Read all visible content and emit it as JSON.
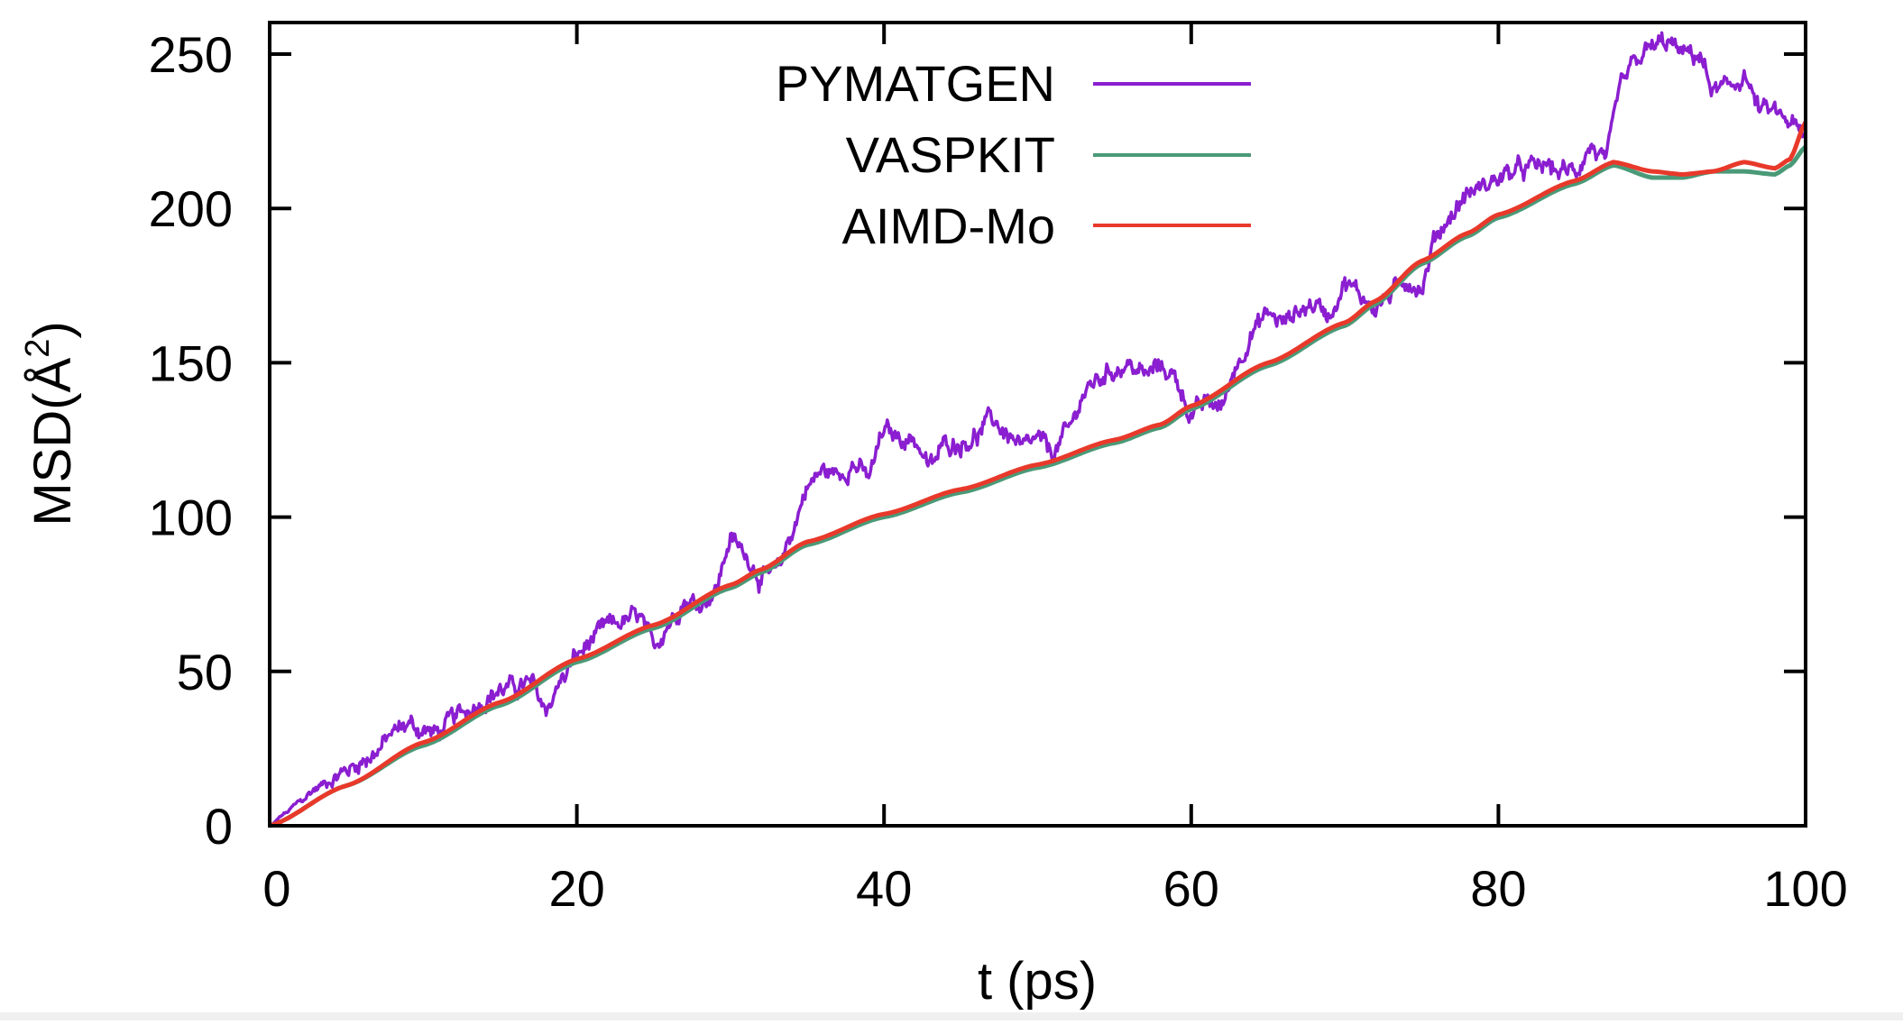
{
  "chart_data": {
    "type": "line",
    "title": "",
    "xlabel": "t (ps)",
    "ylabel": "MSD(Å²)",
    "ylabel_parts": {
      "main": "MSD(Å",
      "sup": "2",
      "close": ")"
    },
    "xlim": [
      0,
      100
    ],
    "ylim": [
      0,
      260
    ],
    "xticks": [
      0,
      20,
      40,
      60,
      80,
      100
    ],
    "yticks": [
      0,
      50,
      100,
      150,
      200,
      250
    ],
    "xtick_labels": [
      "0",
      "20",
      "40",
      "60",
      "80",
      "100"
    ],
    "ytick_labels": [
      "0",
      "50",
      "100",
      "150",
      "200",
      "250"
    ],
    "grid": false,
    "legend_position": "top-center-inside",
    "series": [
      {
        "name": "PYMATGEN",
        "color": "#8a1ed0",
        "noisy": true,
        "x": [
          0,
          1,
          2,
          3,
          4,
          5,
          6,
          7,
          8,
          9,
          10,
          11,
          12,
          13,
          14,
          15,
          16,
          17,
          18,
          19,
          20,
          21,
          22,
          23,
          24,
          25,
          26,
          27,
          28,
          29,
          30,
          31,
          32,
          33,
          34,
          35,
          36,
          37,
          38,
          39,
          40,
          41,
          42,
          43,
          44,
          45,
          46,
          47,
          48,
          49,
          50,
          51,
          52,
          53,
          54,
          55,
          56,
          57,
          58,
          59,
          60,
          61,
          62,
          63,
          64,
          65,
          66,
          67,
          68,
          69,
          70,
          71,
          72,
          73,
          74,
          75,
          76,
          77,
          78,
          79,
          80,
          81,
          82,
          83,
          84,
          85,
          86,
          87,
          88,
          89,
          90,
          91,
          92,
          93,
          94,
          95,
          96,
          97,
          98,
          99,
          100
        ],
        "values": [
          0,
          4,
          8,
          12,
          15,
          18,
          21,
          24,
          30,
          33,
          31,
          30,
          35,
          38,
          41,
          44,
          45,
          46,
          38,
          47,
          55,
          60,
          65,
          66,
          68,
          58,
          66,
          73,
          72,
          76,
          93,
          88,
          80,
          82,
          95,
          110,
          115,
          114,
          117,
          113,
          128,
          126,
          125,
          116,
          124,
          124,
          126,
          132,
          127,
          122,
          125,
          121,
          128,
          140,
          145,
          148,
          149,
          146,
          149,
          145,
          133,
          137,
          136,
          150,
          160,
          166,
          163,
          167,
          169,
          166,
          176,
          172,
          168,
          172,
          177,
          174,
          192,
          198,
          205,
          207,
          210,
          212,
          213,
          214,
          212,
          212,
          220,
          215,
          240,
          248,
          252,
          254,
          250,
          250,
          238,
          239,
          243,
          232,
          231,
          228,
          222
        ]
      },
      {
        "name": "VASPKIT",
        "color": "#4a9a78",
        "noisy": false,
        "x": [
          0,
          5,
          10,
          15,
          20,
          25,
          30,
          32,
          35,
          40,
          45,
          50,
          55,
          58,
          60,
          65,
          70,
          72,
          75,
          78,
          80,
          85,
          87.5,
          90,
          92,
          94,
          96,
          98,
          99,
          100
        ],
        "values": [
          0,
          13,
          26,
          39,
          53,
          64,
          77,
          82,
          91,
          100,
          108,
          116,
          124,
          129,
          135,
          149,
          162,
          169,
          182,
          191,
          197,
          208,
          214,
          210,
          210,
          212,
          212,
          211,
          214,
          220
        ]
      },
      {
        "name": "AIMD-Mo",
        "color": "#e8392a",
        "noisy": false,
        "x": [
          0,
          5,
          10,
          15,
          20,
          25,
          30,
          32,
          35,
          40,
          45,
          50,
          55,
          58,
          60,
          65,
          70,
          72,
          75,
          78,
          80,
          85,
          87.5,
          90,
          92,
          94,
          96,
          98,
          99,
          100
        ],
        "values": [
          0,
          13,
          27,
          40,
          54,
          65,
          78,
          83,
          92,
          101,
          109,
          117,
          125,
          130,
          136,
          150,
          163,
          170,
          183,
          192,
          198,
          209,
          215,
          212,
          211,
          212,
          215,
          213,
          216,
          228
        ]
      }
    ]
  }
}
